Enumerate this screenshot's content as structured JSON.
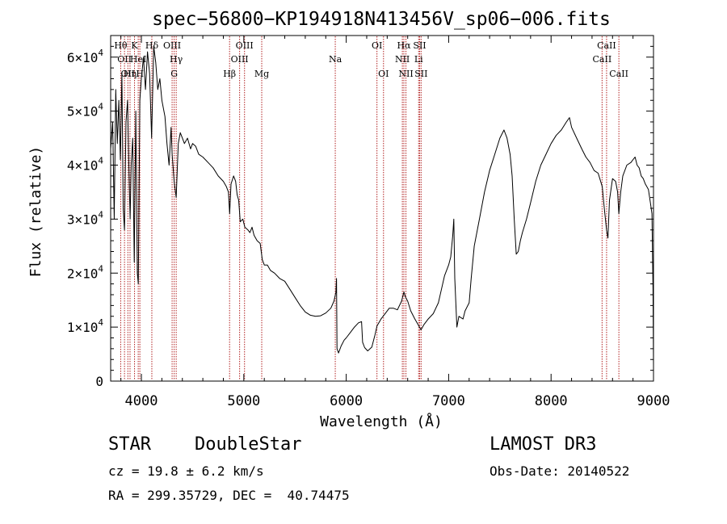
{
  "chart_data": {
    "type": "line",
    "title": "spec−56800−KP194918N413456V_sp06−006.fits",
    "xlabel": "Wavelength (Å)",
    "ylabel": "Flux (relative)",
    "xlim": [
      3700,
      9000
    ],
    "ylim": [
      0,
      64000
    ],
    "x_ticks": [
      {
        "value": 4000,
        "label": "4000"
      },
      {
        "value": 5000,
        "label": "5000"
      },
      {
        "value": 6000,
        "label": "6000"
      },
      {
        "value": 7000,
        "label": "7000"
      },
      {
        "value": 8000,
        "label": "8000"
      },
      {
        "value": 9000,
        "label": "9000"
      }
    ],
    "y_ticks": [
      {
        "value": 0,
        "mantissa": "0",
        "exponent": ""
      },
      {
        "value": 10000,
        "mantissa": "1×10",
        "exponent": "4"
      },
      {
        "value": 20000,
        "mantissa": "2×10",
        "exponent": "4"
      },
      {
        "value": 30000,
        "mantissa": "3×10",
        "exponent": "4"
      },
      {
        "value": 40000,
        "mantissa": "4×10",
        "exponent": "4"
      },
      {
        "value": 50000,
        "mantissa": "5×10",
        "exponent": "4"
      },
      {
        "value": 60000,
        "mantissa": "6×10",
        "exponent": "4"
      }
    ],
    "series": [
      {
        "name": "spectrum",
        "color": "#000000",
        "points": [
          [
            3700,
            43000
          ],
          [
            3720,
            48000
          ],
          [
            3735,
            30000
          ],
          [
            3750,
            54000
          ],
          [
            3765,
            44000
          ],
          [
            3780,
            52000
          ],
          [
            3795,
            41000
          ],
          [
            3810,
            57000
          ],
          [
            3822,
            32000
          ],
          [
            3835,
            28000
          ],
          [
            3850,
            48000
          ],
          [
            3865,
            52000
          ],
          [
            3880,
            38000
          ],
          [
            3890,
            30000
          ],
          [
            3900,
            40000
          ],
          [
            3915,
            45000
          ],
          [
            3930,
            22000
          ],
          [
            3945,
            50000
          ],
          [
            3960,
            20000
          ],
          [
            3970,
            18000
          ],
          [
            3985,
            52000
          ],
          [
            4000,
            56000
          ],
          [
            4020,
            60000
          ],
          [
            4040,
            54000
          ],
          [
            4060,
            61000
          ],
          [
            4080,
            57000
          ],
          [
            4100,
            45000
          ],
          [
            4120,
            62000
          ],
          [
            4140,
            59000
          ],
          [
            4160,
            54000
          ],
          [
            4180,
            56000
          ],
          [
            4200,
            52000
          ],
          [
            4230,
            49000
          ],
          [
            4250,
            44000
          ],
          [
            4270,
            40000
          ],
          [
            4290,
            47000
          ],
          [
            4300,
            42000
          ],
          [
            4320,
            37000
          ],
          [
            4340,
            34000
          ],
          [
            4360,
            44000
          ],
          [
            4380,
            46000
          ],
          [
            4400,
            45000
          ],
          [
            4420,
            44000
          ],
          [
            4450,
            45000
          ],
          [
            4480,
            43000
          ],
          [
            4500,
            44000
          ],
          [
            4530,
            43500
          ],
          [
            4560,
            42000
          ],
          [
            4600,
            41500
          ],
          [
            4650,
            40500
          ],
          [
            4700,
            39500
          ],
          [
            4750,
            38000
          ],
          [
            4800,
            37000
          ],
          [
            4830,
            36000
          ],
          [
            4850,
            35000
          ],
          [
            4862,
            31000
          ],
          [
            4875,
            36500
          ],
          [
            4900,
            38000
          ],
          [
            4920,
            37000
          ],
          [
            4935,
            34500
          ],
          [
            4950,
            33500
          ],
          [
            4965,
            29500
          ],
          [
            4990,
            30000
          ],
          [
            5010,
            28500
          ],
          [
            5040,
            28000
          ],
          [
            5060,
            27500
          ],
          [
            5080,
            28500
          ],
          [
            5100,
            27000
          ],
          [
            5130,
            26000
          ],
          [
            5160,
            25500
          ],
          [
            5180,
            22500
          ],
          [
            5200,
            21500
          ],
          [
            5230,
            21500
          ],
          [
            5260,
            20500
          ],
          [
            5300,
            20000
          ],
          [
            5350,
            19000
          ],
          [
            5400,
            18500
          ],
          [
            5450,
            17000
          ],
          [
            5500,
            15500
          ],
          [
            5550,
            14000
          ],
          [
            5600,
            12800
          ],
          [
            5650,
            12200
          ],
          [
            5700,
            12000
          ],
          [
            5750,
            12100
          ],
          [
            5800,
            12600
          ],
          [
            5850,
            13500
          ],
          [
            5880,
            14800
          ],
          [
            5900,
            16500
          ],
          [
            5905,
            19000
          ],
          [
            5910,
            6000
          ],
          [
            5925,
            5200
          ],
          [
            5950,
            6500
          ],
          [
            5980,
            7600
          ],
          [
            6000,
            8000
          ],
          [
            6040,
            9000
          ],
          [
            6080,
            10000
          ],
          [
            6120,
            10800
          ],
          [
            6150,
            11000
          ],
          [
            6160,
            7200
          ],
          [
            6180,
            6200
          ],
          [
            6210,
            5600
          ],
          [
            6250,
            6300
          ],
          [
            6280,
            8500
          ],
          [
            6300,
            10200
          ],
          [
            6340,
            11500
          ],
          [
            6380,
            12500
          ],
          [
            6420,
            13500
          ],
          [
            6460,
            13500
          ],
          [
            6500,
            13200
          ],
          [
            6540,
            14800
          ],
          [
            6563,
            16500
          ],
          [
            6580,
            15500
          ],
          [
            6600,
            14800
          ],
          [
            6630,
            13000
          ],
          [
            6670,
            11500
          ],
          [
            6700,
            10500
          ],
          [
            6730,
            9500
          ],
          [
            6760,
            10500
          ],
          [
            6800,
            11500
          ],
          [
            6850,
            12500
          ],
          [
            6900,
            14500
          ],
          [
            6930,
            17000
          ],
          [
            6960,
            19500
          ],
          [
            7000,
            21500
          ],
          [
            7020,
            23000
          ],
          [
            7040,
            27000
          ],
          [
            7050,
            30000
          ],
          [
            7060,
            19000
          ],
          [
            7080,
            10000
          ],
          [
            7100,
            12000
          ],
          [
            7140,
            11500
          ],
          [
            7160,
            13000
          ],
          [
            7200,
            14500
          ],
          [
            7220,
            19000
          ],
          [
            7250,
            25000
          ],
          [
            7300,
            30000
          ],
          [
            7350,
            35000
          ],
          [
            7400,
            39000
          ],
          [
            7450,
            42000
          ],
          [
            7500,
            45000
          ],
          [
            7540,
            46500
          ],
          [
            7570,
            45000
          ],
          [
            7600,
            42000
          ],
          [
            7620,
            38000
          ],
          [
            7640,
            30000
          ],
          [
            7660,
            23500
          ],
          [
            7680,
            24000
          ],
          [
            7700,
            26000
          ],
          [
            7720,
            27500
          ],
          [
            7760,
            30000
          ],
          [
            7800,
            33000
          ],
          [
            7850,
            37000
          ],
          [
            7900,
            40000
          ],
          [
            7950,
            42000
          ],
          [
            8000,
            44000
          ],
          [
            8050,
            45500
          ],
          [
            8100,
            46500
          ],
          [
            8150,
            48000
          ],
          [
            8180,
            48800
          ],
          [
            8200,
            47000
          ],
          [
            8250,
            45000
          ],
          [
            8300,
            43000
          ],
          [
            8340,
            41500
          ],
          [
            8380,
            40500
          ],
          [
            8420,
            39000
          ],
          [
            8460,
            38500
          ],
          [
            8500,
            36000
          ],
          [
            8520,
            32000
          ],
          [
            8542,
            28000
          ],
          [
            8555,
            26500
          ],
          [
            8570,
            33500
          ],
          [
            8600,
            37500
          ],
          [
            8630,
            37000
          ],
          [
            8650,
            35000
          ],
          [
            8662,
            31000
          ],
          [
            8680,
            35000
          ],
          [
            8700,
            38000
          ],
          [
            8740,
            40000
          ],
          [
            8780,
            40500
          ],
          [
            8800,
            41000
          ],
          [
            8820,
            41500
          ],
          [
            8840,
            40000
          ],
          [
            8860,
            39500
          ],
          [
            8880,
            38000
          ],
          [
            8900,
            37500
          ],
          [
            8920,
            36500
          ],
          [
            8950,
            35500
          ],
          [
            8970,
            33000
          ],
          [
            8985,
            31000
          ],
          [
            8995,
            17000
          ],
          [
            9000,
            3000
          ]
        ]
      }
    ],
    "annotations": {
      "line_color": "#b22222",
      "top_labels": [
        {
          "wavelength": 3798,
          "label": "Hθ",
          "row": 0
        },
        {
          "wavelength": 3835,
          "label": "OII",
          "row": 1
        },
        {
          "wavelength": 3868,
          "label": "OII",
          "row": 2
        },
        {
          "wavelength": 3889,
          "label": "Hη",
          "row": 2
        },
        {
          "wavelength": 3933,
          "label": "K",
          "row": 0
        },
        {
          "wavelength": 3969,
          "label": "HeI",
          "row": 1
        },
        {
          "wavelength": 3985,
          "label": "H",
          "row": 2
        },
        {
          "wavelength": 4102,
          "label": "Hδ",
          "row": 0
        },
        {
          "wavelength": 4300,
          "label": "OIII",
          "row": 0
        },
        {
          "wavelength": 4320,
          "label": "G",
          "row": 2
        },
        {
          "wavelength": 4340,
          "label": "Hγ",
          "row": 1
        },
        {
          "wavelength": 4861,
          "label": "Hβ",
          "row": 2
        },
        {
          "wavelength": 4959,
          "label": "OIII",
          "row": 1
        },
        {
          "wavelength": 5007,
          "label": "OIII",
          "row": 0
        },
        {
          "wavelength": 5175,
          "label": "Mg",
          "row": 2
        },
        {
          "wavelength": 5893,
          "label": "Na",
          "row": 1
        },
        {
          "wavelength": 6300,
          "label": "OI",
          "row": 0
        },
        {
          "wavelength": 6364,
          "label": "OI",
          "row": 2
        },
        {
          "wavelength": 6548,
          "label": "NII",
          "row": 1
        },
        {
          "wavelength": 6563,
          "label": "Hα",
          "row": 0
        },
        {
          "wavelength": 6583,
          "label": "NII",
          "row": 2
        },
        {
          "wavelength": 6707,
          "label": "Li",
          "row": 1
        },
        {
          "wavelength": 6717,
          "label": "SII",
          "row": 0
        },
        {
          "wavelength": 6731,
          "label": "SII",
          "row": 2
        },
        {
          "wavelength": 8498,
          "label": "CaII",
          "row": 1
        },
        {
          "wavelength": 8542,
          "label": "CaII",
          "row": 0
        },
        {
          "wavelength": 8662,
          "label": "CaII",
          "row": 2
        }
      ]
    }
  },
  "info": {
    "class": "STAR",
    "subclass": "DoubleStar",
    "survey": "LAMOST DR3",
    "cz": "cz = 19.8 ± 6.2 km/s",
    "obs_date": "Obs-Date: 20140522",
    "coords": "RA = 299.35729, DEC =  40.74475"
  }
}
